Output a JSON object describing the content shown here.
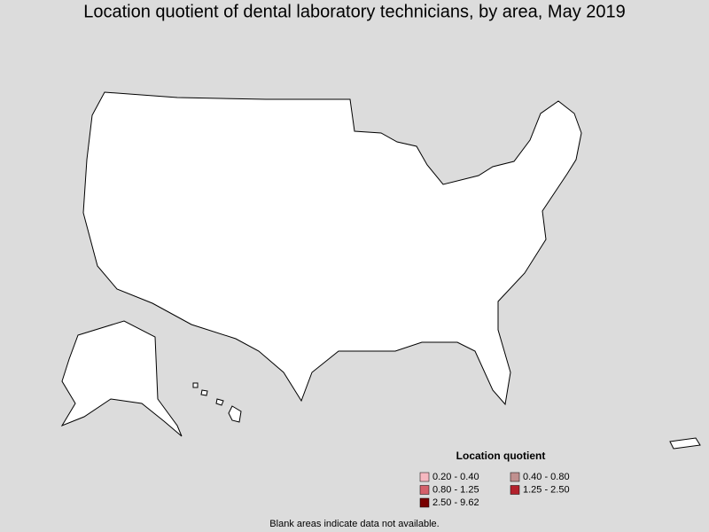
{
  "title": "Location quotient of dental laboratory technicians, by area, May 2019",
  "legend": {
    "title": "Location quotient",
    "items": [
      {
        "label": "0.20 - 0.40",
        "color": "#f6b8c0"
      },
      {
        "label": "0.40 - 0.80",
        "color": "#c0908f"
      },
      {
        "label": "0.80 - 1.25",
        "color": "#d4606a"
      },
      {
        "label": "1.25 - 2.50",
        "color": "#b3212c"
      },
      {
        "label": "2.50 - 9.62",
        "color": "#780000"
      }
    ]
  },
  "footnote": "Blank areas indicate data not available."
}
